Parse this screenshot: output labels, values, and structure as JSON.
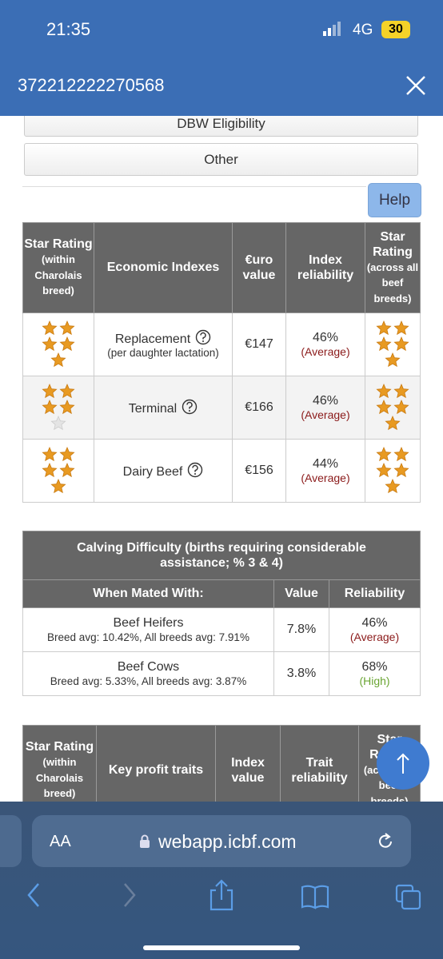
{
  "status_bar": {
    "time": "21:35",
    "network": "4G",
    "battery": "30"
  },
  "header": {
    "title": "372212222270568"
  },
  "buttons": {
    "dbw": "DBW Eligibility",
    "other": "Other",
    "help": "Help"
  },
  "economic_table": {
    "headers": {
      "stars_within": {
        "title": "Star Rating",
        "sub": "(within Charolais breed)"
      },
      "name": "Economic Indexes",
      "value": "€uro value",
      "reliability": "Index reliability",
      "stars_across": {
        "title": "Star Rating",
        "sub": "(across all beef breeds)"
      }
    },
    "rows": [
      {
        "stars_within": 5,
        "name": "Replacement",
        "note": "(per daughter lactation)",
        "value": "€147",
        "reliability": "46%",
        "reliability_label": "(Average)",
        "stars_across": 5
      },
      {
        "stars_within": 4,
        "name": "Terminal",
        "value": "€166",
        "reliability": "46%",
        "reliability_label": "(Average)",
        "stars_across": 5
      },
      {
        "stars_within": 5,
        "name": "Dairy Beef",
        "value": "€156",
        "reliability": "44%",
        "reliability_label": "(Average)",
        "stars_across": 5
      }
    ]
  },
  "calving_table": {
    "title": "Calving Difficulty (births requiring considerable assistance; % 3 & 4)",
    "headers": [
      "When Mated With:",
      "Value",
      "Reliability"
    ],
    "rows": [
      {
        "name": "Beef Heifers",
        "note": "Breed avg: 10.42%, All breeds avg: 7.91%",
        "value": "7.8%",
        "reliability": "46%",
        "reliability_label": "(Average)"
      },
      {
        "name": "Beef Cows",
        "note": "Breed avg: 5.33%, All breeds avg: 3.87%",
        "value": "3.8%",
        "reliability": "68%",
        "reliability_label": "(High)"
      }
    ]
  },
  "traits_table": {
    "headers": {
      "stars_within": {
        "title": "Star Rating",
        "sub": "(within Charolais breed)"
      },
      "name": "Key profit traits",
      "value": "Index value",
      "reliability": "Trait reliability",
      "stars_across": {
        "title": "Star Rating",
        "sub": "(across all beef breeds)"
      }
    }
  },
  "browser": {
    "text_size": "AA",
    "url": "webapp.icbf.com"
  }
}
